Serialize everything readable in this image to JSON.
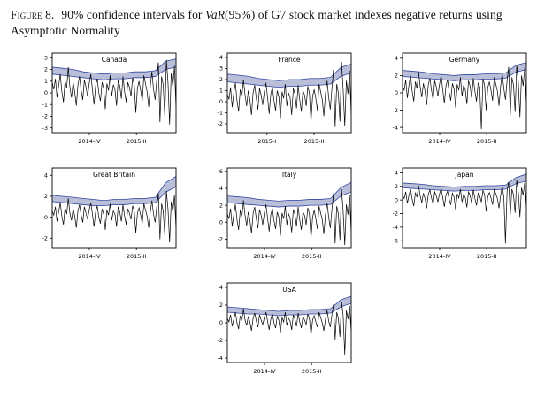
{
  "caption": {
    "figure_label": "Figure 8.",
    "pre": "90% confidence intervals for ",
    "italic_term": "VaR",
    "post": "(95%) of G7 stock market indexes negative returns using Asymptotic Normality"
  },
  "colors": {
    "band_fill": "#b9bfd9",
    "band_edge": "#3347a0",
    "line": "#000000",
    "background": "#ffffff"
  },
  "chart_data": [
    {
      "type": "line",
      "title": "Canada",
      "ylim": [
        -3.4,
        3.4
      ],
      "yticks": [
        -3,
        -2,
        -1,
        0,
        1,
        2,
        3
      ],
      "xticks": [
        {
          "label": "2014-IV",
          "pos": 0.3
        },
        {
          "label": "2015-II",
          "pos": 0.68
        }
      ],
      "band_upper": [
        2.2,
        2.1,
        2.0,
        1.8,
        1.7,
        1.6,
        1.7,
        1.7,
        1.8,
        1.8,
        1.9,
        2.7,
        2.9
      ],
      "band_lower": [
        1.6,
        1.5,
        1.4,
        1.3,
        1.2,
        1.1,
        1.2,
        1.2,
        1.3,
        1.3,
        1.4,
        2.0,
        2.2
      ],
      "series": [
        0.9,
        0.3,
        1.2,
        -0.4,
        0.6,
        1.6,
        0.1,
        -0.8,
        1.0,
        0.4,
        2.2,
        0.5,
        -0.4,
        0.9,
        0.1,
        -1.1,
        0.7,
        1.4,
        0.2,
        -0.6,
        1.1,
        0.5,
        -0.3,
        0.8,
        1.6,
        0.3,
        -1.0,
        0.6,
        1.2,
        0.0,
        -0.7,
        0.9,
        0.4,
        -1.4,
        0.8,
        0.2,
        1.5,
        -0.3,
        0.7,
        0.3,
        -1.1,
        1.1,
        0.6,
        -0.5,
        1.4,
        0.1,
        -0.8,
        0.9,
        0.5,
        -0.3,
        1.3,
        0.7,
        -1.7,
        0.4,
        1.0,
        0.2,
        -0.7,
        1.5,
        0.8,
        0.1,
        -1.2,
        0.6,
        1.8,
        0.3,
        -0.6,
        1.1,
        2.6,
        -2.5,
        1.4,
        0.7,
        -2.0,
        2.8,
        0.9,
        -2.7,
        1.7,
        0.5,
        2.3,
        -1.3
      ]
    },
    {
      "type": "line",
      "title": "France",
      "ylim": [
        -2.8,
        4.4
      ],
      "yticks": [
        -2,
        -1,
        0,
        1,
        2,
        3,
        4
      ],
      "xticks": [
        {
          "label": "2015-I",
          "pos": 0.32
        },
        {
          "label": "2015-II",
          "pos": 0.7
        }
      ],
      "band_upper": [
        2.5,
        2.4,
        2.3,
        2.1,
        2.0,
        1.9,
        2.0,
        2.0,
        2.1,
        2.1,
        2.2,
        3.1,
        3.4
      ],
      "band_lower": [
        1.8,
        1.7,
        1.6,
        1.5,
        1.4,
        1.3,
        1.4,
        1.4,
        1.5,
        1.5,
        1.6,
        2.3,
        2.6
      ],
      "series": [
        0.7,
        0.2,
        1.3,
        -0.5,
        0.8,
        1.7,
        0.1,
        -0.9,
        1.1,
        0.5,
        2.0,
        0.6,
        -0.4,
        1.0,
        0.2,
        -1.2,
        0.8,
        1.5,
        0.3,
        -0.7,
        1.2,
        0.6,
        -0.3,
        0.9,
        1.7,
        0.4,
        -1.1,
        0.7,
        1.3,
        0.1,
        -0.8,
        1.0,
        0.5,
        -1.5,
        0.9,
        0.3,
        1.6,
        -0.4,
        0.8,
        0.4,
        -1.2,
        1.2,
        0.7,
        -0.6,
        1.5,
        0.2,
        -0.9,
        1.0,
        0.6,
        -0.4,
        1.4,
        0.8,
        -1.8,
        0.5,
        1.1,
        0.3,
        -0.8,
        1.6,
        0.9,
        0.2,
        -1.3,
        0.7,
        1.9,
        0.4,
        -0.7,
        1.2,
        2.9,
        -2.3,
        1.6,
        0.8,
        -1.8,
        3.6,
        1.1,
        -2.2,
        1.9,
        0.7,
        2.8,
        -1.2
      ]
    },
    {
      "type": "line",
      "title": "Germany",
      "ylim": [
        -4.6,
        4.6
      ],
      "yticks": [
        -4,
        -2,
        0,
        2,
        4
      ],
      "xticks": [
        {
          "label": "2014-IV",
          "pos": 0.3
        },
        {
          "label": "2015-II",
          "pos": 0.68
        }
      ],
      "band_upper": [
        2.6,
        2.5,
        2.4,
        2.2,
        2.1,
        2.0,
        2.1,
        2.1,
        2.2,
        2.2,
        2.3,
        3.2,
        3.5
      ],
      "band_lower": [
        1.9,
        1.8,
        1.7,
        1.6,
        1.5,
        1.4,
        1.5,
        1.5,
        1.6,
        1.6,
        1.7,
        2.4,
        2.7
      ],
      "series": [
        0.8,
        0.3,
        1.5,
        -0.6,
        0.9,
        2.0,
        0.2,
        -1.0,
        1.3,
        0.5,
        2.4,
        0.7,
        -0.5,
        1.1,
        0.2,
        -1.4,
        0.9,
        1.7,
        0.3,
        -0.8,
        1.4,
        0.7,
        -0.4,
        1.0,
        2.0,
        0.4,
        -1.2,
        0.8,
        1.5,
        0.1,
        -0.9,
        1.1,
        0.5,
        -1.7,
        1.0,
        0.3,
        1.8,
        -0.4,
        0.9,
        0.4,
        -1.3,
        1.4,
        0.8,
        -0.6,
        1.7,
        0.2,
        -1.0,
        1.1,
        0.7,
        -4.2,
        1.6,
        0.9,
        -2.0,
        0.6,
        1.3,
        0.3,
        -0.9,
        1.8,
        1.0,
        0.2,
        -1.5,
        0.8,
        2.2,
        0.5,
        -0.8,
        1.4,
        3.0,
        -2.6,
        1.8,
        0.9,
        -2.2,
        3.2,
        1.2,
        -2.8,
        2.0,
        0.8,
        2.9,
        -1.4
      ]
    },
    {
      "type": "line",
      "title": "Great Britain",
      "ylim": [
        -2.9,
        4.7
      ],
      "yticks": [
        -2,
        0,
        2,
        4
      ],
      "xticks": [
        {
          "label": "2014-IV",
          "pos": 0.3
        },
        {
          "label": "2015-II",
          "pos": 0.68
        }
      ],
      "band_upper": [
        2.1,
        2.0,
        1.9,
        1.8,
        1.7,
        1.6,
        1.7,
        1.7,
        1.8,
        1.8,
        1.9,
        3.3,
        3.9
      ],
      "band_lower": [
        1.5,
        1.4,
        1.3,
        1.2,
        1.1,
        1.1,
        1.2,
        1.2,
        1.3,
        1.3,
        1.4,
        2.4,
        2.9
      ],
      "series": [
        0.6,
        0.2,
        1.0,
        -0.4,
        0.5,
        1.4,
        0.1,
        -0.7,
        0.9,
        0.3,
        1.8,
        0.4,
        -0.3,
        0.8,
        0.1,
        -1.0,
        0.6,
        1.2,
        0.2,
        -0.5,
        1.0,
        0.4,
        -0.2,
        0.7,
        1.4,
        0.3,
        -0.9,
        0.5,
        1.1,
        0.0,
        -0.6,
        0.8,
        0.3,
        -1.2,
        0.7,
        0.2,
        1.3,
        -0.3,
        0.6,
        0.3,
        -0.9,
        1.0,
        0.5,
        -0.4,
        1.2,
        0.1,
        -0.7,
        0.8,
        0.4,
        -0.2,
        1.1,
        0.6,
        -1.5,
        0.4,
        0.9,
        0.2,
        -0.6,
        1.3,
        0.7,
        0.1,
        -1.0,
        0.5,
        1.6,
        0.3,
        -0.5,
        1.0,
        2.3,
        -2.1,
        1.3,
        0.6,
        -1.7,
        2.5,
        0.8,
        -2.4,
        1.5,
        0.5,
        2.1,
        -1.1
      ]
    },
    {
      "type": "line",
      "title": "Italy",
      "ylim": [
        -3.0,
        6.4
      ],
      "yticks": [
        -2,
        0,
        2,
        4,
        6
      ],
      "xticks": [
        {
          "label": "2014-IV",
          "pos": 0.3
        },
        {
          "label": "2015-II",
          "pos": 0.68
        }
      ],
      "band_upper": [
        3.1,
        3.0,
        2.9,
        2.7,
        2.6,
        2.5,
        2.6,
        2.6,
        2.7,
        2.7,
        2.8,
        4.1,
        4.7
      ],
      "band_lower": [
        2.3,
        2.2,
        2.1,
        2.0,
        1.9,
        1.8,
        1.9,
        1.9,
        2.0,
        2.0,
        2.1,
        3.1,
        3.6
      ],
      "series": [
        1.0,
        0.4,
        1.6,
        -0.5,
        0.9,
        2.1,
        0.3,
        -0.9,
        1.4,
        0.6,
        2.6,
        0.8,
        -0.4,
        1.2,
        0.3,
        -1.3,
        1.0,
        1.8,
        0.4,
        -0.7,
        1.5,
        0.8,
        -0.3,
        1.1,
        2.1,
        0.5,
        -1.1,
        0.9,
        1.6,
        0.2,
        -0.8,
        1.2,
        0.6,
        -1.6,
        1.1,
        0.4,
        1.9,
        -0.3,
        1.0,
        0.5,
        -1.2,
        1.5,
        0.9,
        -0.5,
        1.8,
        0.3,
        -0.9,
        1.2,
        0.8,
        -0.3,
        1.7,
        1.0,
        -1.9,
        0.6,
        1.4,
        0.4,
        -0.8,
        1.9,
        1.1,
        0.3,
        -1.4,
        0.9,
        2.3,
        0.6,
        -0.7,
        1.5,
        3.4,
        -2.5,
        1.9,
        1.0,
        -2.1,
        3.9,
        1.3,
        -2.7,
        2.1,
        0.9,
        3.2,
        -1.3
      ]
    },
    {
      "type": "line",
      "title": "Japan",
      "ylim": [
        -7.0,
        4.7
      ],
      "yticks": [
        -6,
        -4,
        -2,
        0,
        2,
        4
      ],
      "xticks": [
        {
          "label": "2014-IV",
          "pos": 0.3
        },
        {
          "label": "2015-II",
          "pos": 0.68
        }
      ],
      "band_upper": [
        2.5,
        2.4,
        2.3,
        2.1,
        2.0,
        1.9,
        2.0,
        2.0,
        2.1,
        2.1,
        2.2,
        3.3,
        3.8
      ],
      "band_lower": [
        1.8,
        1.7,
        1.6,
        1.5,
        1.4,
        1.3,
        1.4,
        1.4,
        1.5,
        1.5,
        1.6,
        2.4,
        2.8
      ],
      "series": [
        0.7,
        0.2,
        1.2,
        -0.5,
        0.7,
        1.6,
        0.1,
        -0.9,
        1.1,
        0.4,
        2.1,
        0.6,
        -0.4,
        1.0,
        0.2,
        -1.2,
        0.8,
        1.5,
        0.3,
        -0.6,
        1.2,
        0.6,
        -0.3,
        0.9,
        1.7,
        0.4,
        -1.0,
        0.7,
        1.3,
        0.1,
        -0.7,
        1.0,
        0.5,
        -1.4,
        0.9,
        0.3,
        1.6,
        -0.3,
        0.8,
        0.4,
        -1.1,
        1.2,
        0.7,
        -0.5,
        1.5,
        0.2,
        -0.8,
        1.0,
        0.6,
        -0.3,
        1.4,
        0.8,
        -1.7,
        0.5,
        1.1,
        0.3,
        -0.7,
        1.6,
        0.9,
        0.2,
        -1.2,
        0.7,
        2.0,
        0.4,
        -6.4,
        1.3,
        2.7,
        -2.2,
        1.6,
        0.8,
        -1.9,
        3.0,
        1.1,
        -2.5,
        1.8,
        0.7,
        2.6,
        -1.2
      ]
    },
    {
      "type": "line",
      "title": "USA",
      "ylim": [
        -4.5,
        4.5
      ],
      "yticks": [
        -4,
        -2,
        0,
        2,
        4
      ],
      "xticks": [
        {
          "label": "2014-IV",
          "pos": 0.3
        },
        {
          "label": "2015-II",
          "pos": 0.68
        }
      ],
      "band_upper": [
        1.8,
        1.7,
        1.6,
        1.5,
        1.4,
        1.3,
        1.4,
        1.4,
        1.5,
        1.5,
        1.6,
        2.6,
        3.0
      ],
      "band_lower": [
        1.2,
        1.1,
        1.0,
        1.0,
        0.9,
        0.8,
        0.9,
        0.9,
        1.0,
        1.0,
        1.1,
        1.8,
        2.2
      ],
      "series": [
        0.5,
        0.1,
        0.9,
        -0.4,
        0.4,
        1.2,
        0.0,
        -0.7,
        0.8,
        0.2,
        1.6,
        0.3,
        -0.3,
        0.7,
        0.1,
        -0.9,
        0.5,
        1.1,
        0.2,
        -0.5,
        0.9,
        0.3,
        -0.2,
        0.6,
        1.2,
        0.2,
        -0.8,
        0.4,
        1.0,
        0.0,
        -0.6,
        0.7,
        0.3,
        -1.1,
        0.6,
        0.1,
        1.2,
        -0.3,
        0.5,
        0.2,
        -0.8,
        0.9,
        0.4,
        -0.4,
        1.1,
        0.1,
        -0.6,
        0.7,
        0.3,
        -0.2,
        1.0,
        0.5,
        -1.4,
        0.3,
        0.8,
        0.1,
        -0.5,
        1.2,
        0.6,
        0.0,
        -0.9,
        0.4,
        1.4,
        0.2,
        -0.5,
        0.9,
        2.1,
        -1.9,
        1.2,
        0.5,
        -1.6,
        2.4,
        0.8,
        -3.6,
        1.4,
        0.4,
        1.9,
        -1.0
      ]
    }
  ],
  "layout": {
    "rows": [
      [
        0,
        1,
        2
      ],
      [
        3,
        4,
        5
      ],
      [
        6
      ]
    ]
  }
}
